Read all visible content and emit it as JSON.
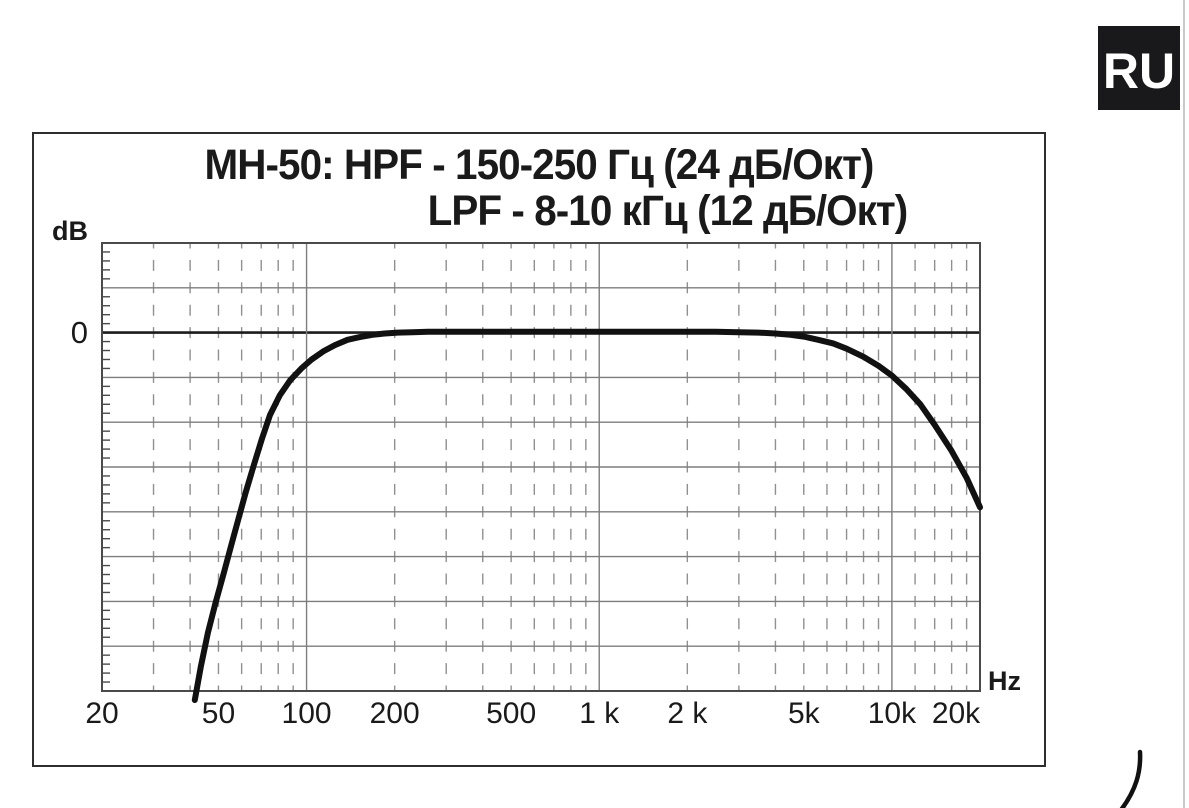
{
  "page": {
    "language_badge": "RU"
  },
  "chart": {
    "title_line1": "MH-50: HPF - 150-250 Гц (24 дБ/Окт)",
    "title_line2": "LPF - 8-10 кГц (12 дБ/Окт)",
    "y_unit": "dB",
    "x_unit": "Hz",
    "zero_label": "0"
  },
  "colors": {
    "background": "#ffffff",
    "curve": "#111111",
    "grid_major": "#7d7d7d",
    "grid_dashed": "#909090",
    "spine": "#4a4a4a",
    "zero_line": "#1c1c1c",
    "text": "#1a1a1a",
    "badge_bg": "#19191b",
    "badge_text": "#ffffff",
    "page_edge": "#c9c9c9"
  },
  "chart_data": {
    "type": "line",
    "title": "MH-50: HPF - 150-250 Гц (24 дБ/Окт)  LPF - 8-10 кГц (12 дБ/Окт)",
    "xlabel": "Hz",
    "ylabel": "dB",
    "legend": "none",
    "grid": "log-frequency grid, solid 5 dB horizontal lines, dashed minor frequency lines",
    "x_axis": {
      "scale": "log",
      "min_hz": 20,
      "max_hz": 20000,
      "major_ticks": [
        {
          "hz": 20,
          "label": "20"
        },
        {
          "hz": 50,
          "label": "50"
        },
        {
          "hz": 100,
          "label": "100"
        },
        {
          "hz": 200,
          "label": "200"
        },
        {
          "hz": 500,
          "label": "500"
        },
        {
          "hz": 1000,
          "label": "1 k"
        },
        {
          "hz": 2000,
          "label": "2 k"
        },
        {
          "hz": 5000,
          "label": "5k"
        },
        {
          "hz": 10000,
          "label": "10k"
        },
        {
          "hz": 20000,
          "label": "20k"
        }
      ],
      "solid_gridlines_hz": [
        100,
        1000,
        10000
      ],
      "dashed_gridlines_hz": [
        30,
        40,
        50,
        60,
        70,
        80,
        90,
        200,
        300,
        400,
        500,
        600,
        700,
        800,
        900,
        2000,
        3000,
        4000,
        5000,
        6000,
        7000,
        8000,
        9000,
        12000,
        14000,
        16000,
        18000
      ]
    },
    "y_axis": {
      "min_db": -40,
      "max_db": 10,
      "major_gridline_step_db": 5,
      "minor_tick_step_db": 1,
      "labeled_tick": {
        "db": 0,
        "label": "0"
      }
    },
    "series": [
      {
        "name": "MH-50 frequency response (HPF 150-250 Hz 24 dB/oct, LPF 8-10 kHz 12 dB/oct)",
        "points_hz_db": [
          [
            41.5,
            -41.0
          ],
          [
            43.5,
            -37.3
          ],
          [
            46,
            -33.5
          ],
          [
            49,
            -30.0
          ],
          [
            52,
            -27.0
          ],
          [
            55,
            -24.0
          ],
          [
            58.5,
            -20.8
          ],
          [
            62,
            -17.8
          ],
          [
            66,
            -14.8
          ],
          [
            70.5,
            -11.8
          ],
          [
            75,
            -9.2
          ],
          [
            81,
            -7.0
          ],
          [
            88,
            -5.3
          ],
          [
            96,
            -4.0
          ],
          [
            104,
            -3.0
          ],
          [
            114,
            -2.1
          ],
          [
            125,
            -1.4
          ],
          [
            138,
            -0.8
          ],
          [
            152,
            -0.5
          ],
          [
            168,
            -0.25
          ],
          [
            185,
            -0.1
          ],
          [
            205,
            0.0
          ],
          [
            230,
            0.05
          ],
          [
            260,
            0.1
          ],
          [
            300,
            0.1
          ],
          [
            400,
            0.1
          ],
          [
            600,
            0.1
          ],
          [
            1000,
            0.1
          ],
          [
            1500,
            0.1
          ],
          [
            2000,
            0.1
          ],
          [
            2500,
            0.1
          ],
          [
            3000,
            0.05
          ],
          [
            3500,
            0.0
          ],
          [
            4000,
            -0.1
          ],
          [
            4500,
            -0.25
          ],
          [
            5000,
            -0.45
          ],
          [
            5600,
            -0.8
          ],
          [
            6300,
            -1.2
          ],
          [
            7000,
            -1.8
          ],
          [
            8000,
            -2.7
          ],
          [
            9000,
            -3.7
          ],
          [
            10000,
            -4.8
          ],
          [
            11200,
            -6.3
          ],
          [
            12500,
            -8.0
          ],
          [
            14000,
            -10.3
          ],
          [
            16000,
            -13.2
          ],
          [
            18000,
            -16.2
          ],
          [
            20000,
            -19.5
          ]
        ]
      }
    ]
  }
}
